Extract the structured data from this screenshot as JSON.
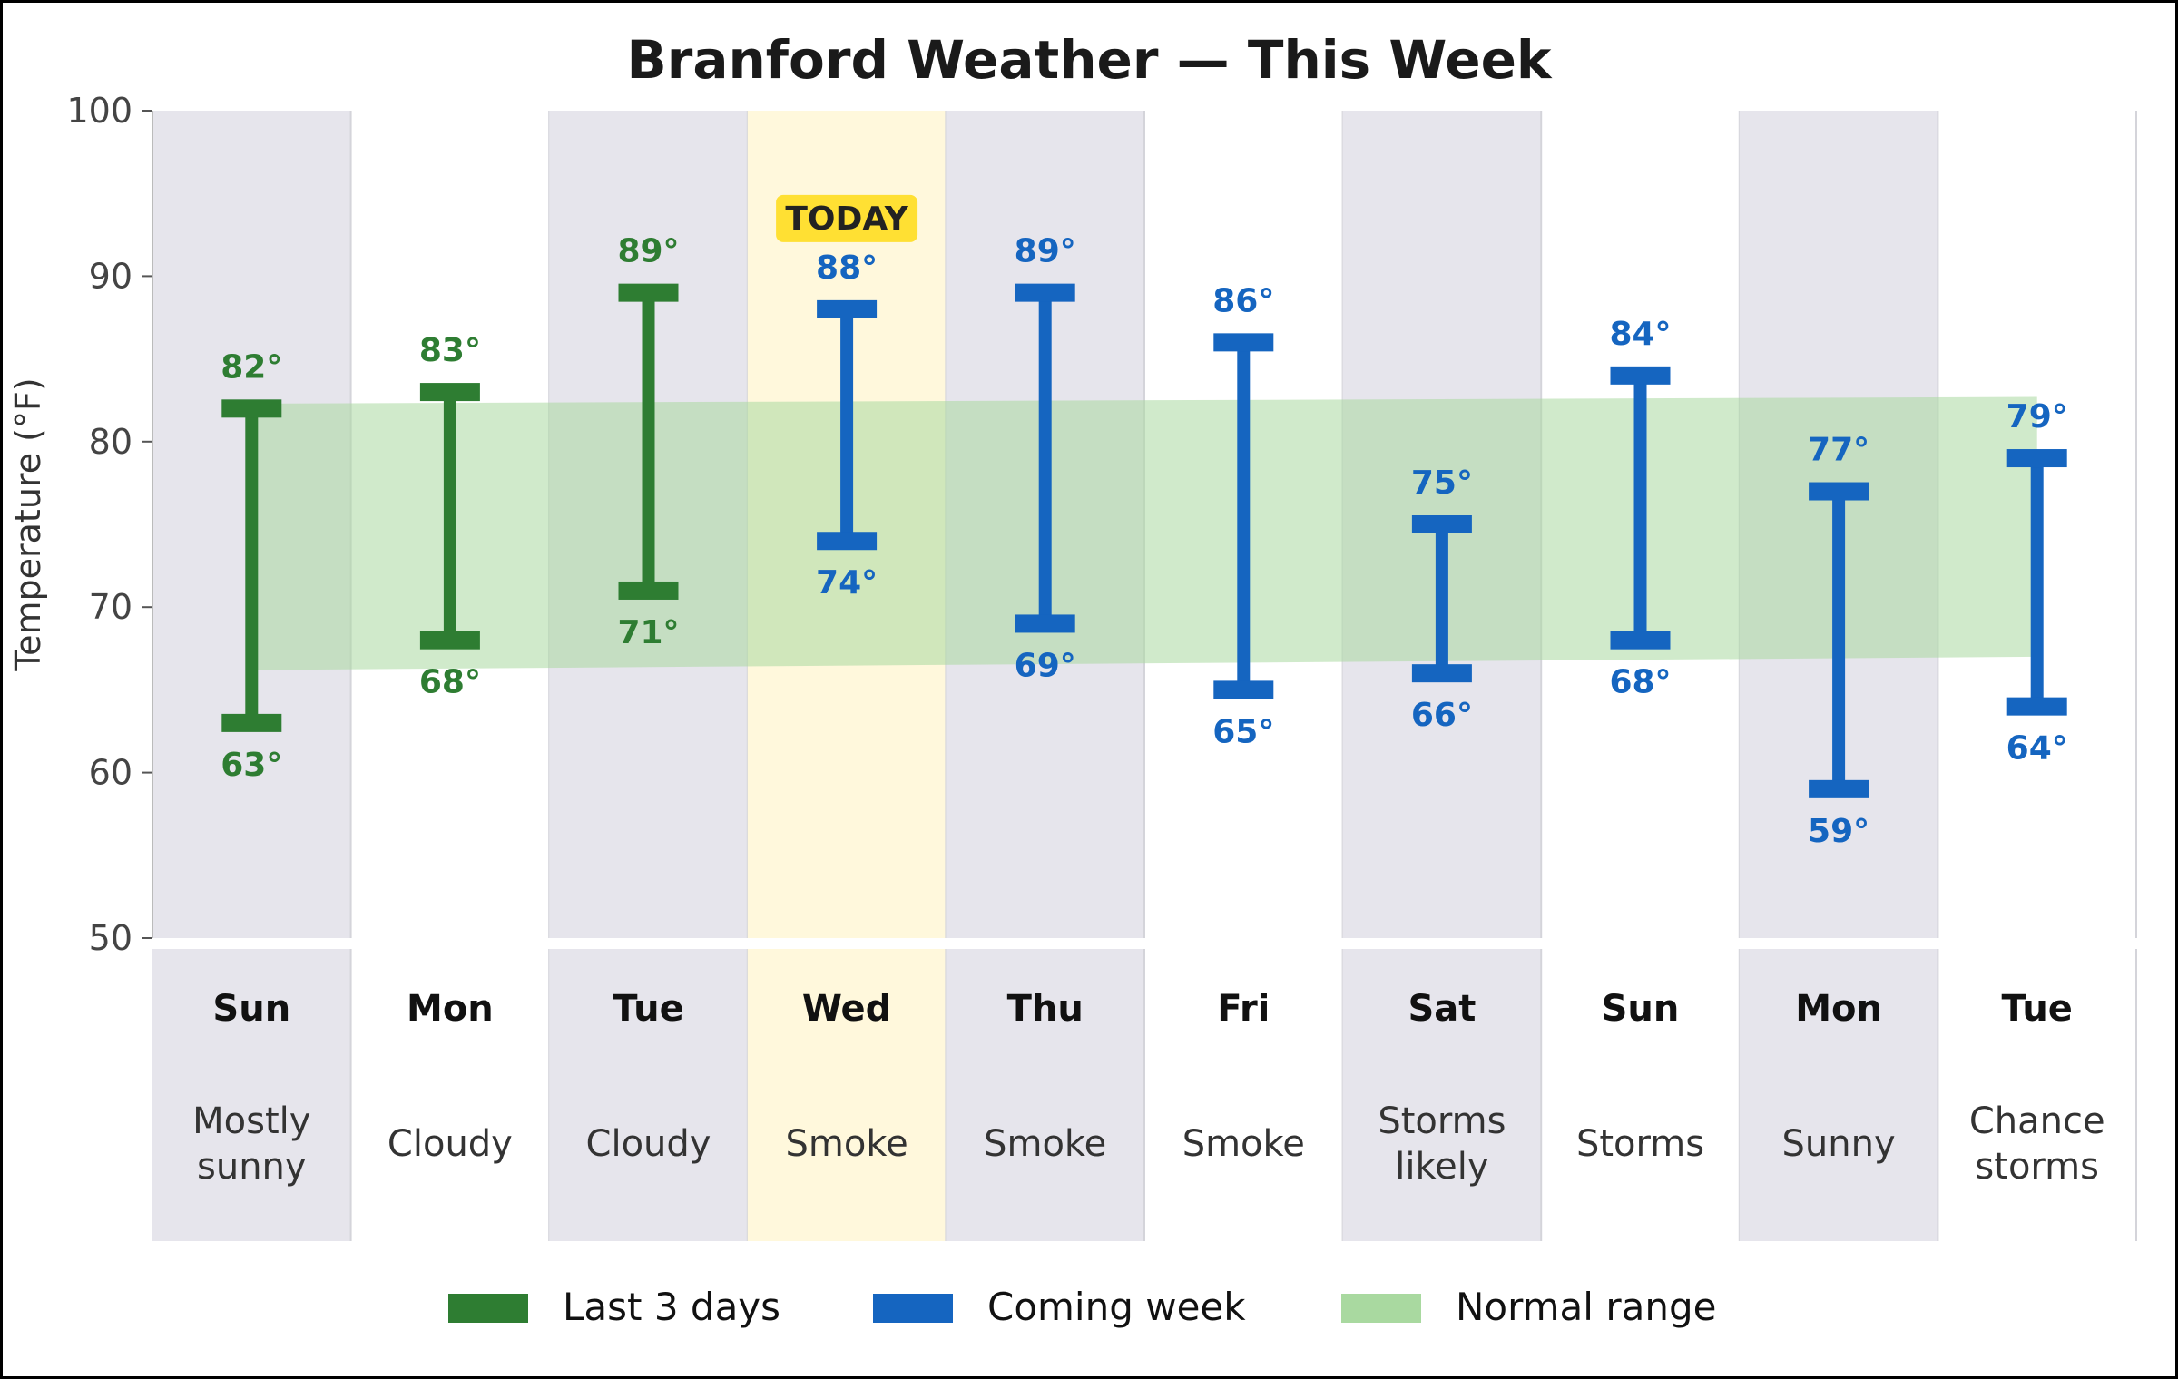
{
  "chart_data": {
    "type": "range_bar",
    "title": "Branford Weather — This Week",
    "ylabel": "Temperature (°F)",
    "ylim": [
      50,
      100
    ],
    "yticks": [
      50,
      60,
      70,
      80,
      90,
      100
    ],
    "today_label": "TODAY",
    "today_index": 3,
    "days": [
      {
        "day": "Sun",
        "cond": [
          "Mostly",
          "sunny"
        ],
        "high": 82,
        "low": 63,
        "high_label": "82°",
        "low_label": "63°",
        "group": "past"
      },
      {
        "day": "Mon",
        "cond": [
          "Cloudy"
        ],
        "high": 83,
        "low": 68,
        "high_label": "83°",
        "low_label": "68°",
        "group": "past"
      },
      {
        "day": "Tue",
        "cond": [
          "Cloudy"
        ],
        "high": 89,
        "low": 71,
        "high_label": "89°",
        "low_label": "71°",
        "group": "past"
      },
      {
        "day": "Wed",
        "cond": [
          "Smoke"
        ],
        "high": 88,
        "low": 74,
        "high_label": "88°",
        "low_label": "74°",
        "group": "coming"
      },
      {
        "day": "Thu",
        "cond": [
          "Smoke"
        ],
        "high": 89,
        "low": 69,
        "high_label": "89°",
        "low_label": "69°",
        "group": "coming"
      },
      {
        "day": "Fri",
        "cond": [
          "Smoke"
        ],
        "high": 86,
        "low": 65,
        "high_label": "86°",
        "low_label": "65°",
        "group": "coming"
      },
      {
        "day": "Sat",
        "cond": [
          "Storms",
          "likely"
        ],
        "high": 75,
        "low": 66,
        "high_label": "75°",
        "low_label": "66°",
        "group": "coming"
      },
      {
        "day": "Sun",
        "cond": [
          "Storms"
        ],
        "high": 84,
        "low": 68,
        "high_label": "84°",
        "low_label": "68°",
        "group": "coming"
      },
      {
        "day": "Mon",
        "cond": [
          "Sunny"
        ],
        "high": 77,
        "low": 59,
        "high_label": "77°",
        "low_label": "59°",
        "group": "coming"
      },
      {
        "day": "Tue",
        "cond": [
          "Chance",
          "storms"
        ],
        "high": 79,
        "low": 64,
        "high_label": "79°",
        "low_label": "64°",
        "group": "coming"
      }
    ],
    "normal_range": {
      "high_start": 82.3,
      "high_end": 82.7,
      "low_start": 66.2,
      "low_end": 67.0
    },
    "legend": [
      {
        "label": "Last 3 days",
        "color": "#2e7d32"
      },
      {
        "label": "Coming week",
        "color": "#1565c0"
      },
      {
        "label": "Normal range",
        "color": "#a9d9a0"
      }
    ],
    "colors": {
      "past": "#2e7d32",
      "coming": "#1565c0",
      "band": "#a9d9a0",
      "stripe": "#e6e5ec",
      "today": "#fff8dc",
      "today_badge": "#ffe033"
    },
    "grid": false,
    "legend_position": "bottom"
  }
}
